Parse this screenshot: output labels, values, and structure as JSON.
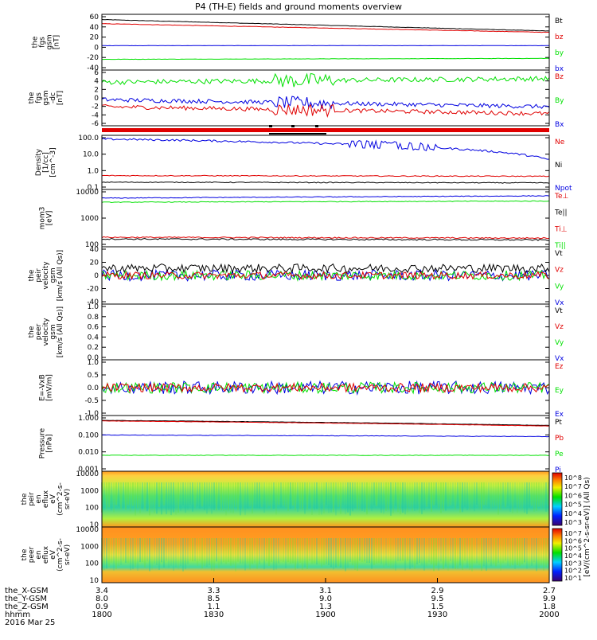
{
  "title": "P4 (TH-E) fields and ground moments overview",
  "date_label": "2016 Mar 25",
  "colors": {
    "black": "#000000",
    "red": "#e00000",
    "green": "#00e000",
    "blue": "#0000e0"
  },
  "chart_data": [
    {
      "type": "line",
      "ylabel": [
        "the",
        "fgs",
        "gsm",
        "[nT]"
      ],
      "yticks": [
        "60",
        "40",
        "20",
        "0",
        "-20",
        "-40"
      ],
      "ylim": [
        -50,
        65
      ],
      "legend": [
        {
          "name": "Bt",
          "color": "black"
        },
        {
          "name": "bz",
          "color": "red"
        },
        {
          "name": "by",
          "color": "green"
        },
        {
          "name": "bx",
          "color": "blue"
        }
      ],
      "series": [
        {
          "color": "black",
          "start": 57,
          "end": 32,
          "noise": 0.4
        },
        {
          "color": "red",
          "start": 48,
          "end": 29,
          "noise": 0.4
        },
        {
          "color": "blue",
          "start": 0,
          "end": 0,
          "noise": 0.3
        },
        {
          "color": "green",
          "start": -30,
          "end": -28,
          "noise": 0.3
        }
      ]
    },
    {
      "type": "line",
      "ylabel": [
        "the",
        "fgs",
        "gsm",
        "-dc",
        "[nT]"
      ],
      "yticks": [
        "6",
        "4",
        "2",
        "0",
        "-2",
        "-4",
        "-6"
      ],
      "ylim": [
        -8,
        7
      ],
      "legend": [
        {
          "name": "Bz",
          "color": "red"
        },
        {
          "name": "By",
          "color": "green"
        },
        {
          "name": "Bx",
          "color": "blue"
        }
      ],
      "series": [
        {
          "color": "green",
          "start": 4,
          "end": 5,
          "noise": 0.7
        },
        {
          "color": "blue",
          "start": -1,
          "end": -3,
          "noise": 0.6
        },
        {
          "color": "red",
          "start": -3,
          "end": -5,
          "noise": 0.6
        }
      ]
    },
    {
      "type": "line",
      "ylabel": [
        "Density",
        "[1/cc]",
        "[cm^-3]"
      ],
      "yticks": [
        "100.0",
        "10.0",
        "1.0",
        "0.1"
      ],
      "log": true,
      "ylim": [
        0.1,
        120
      ],
      "legend": [
        {
          "name": "Ne",
          "color": "red"
        },
        {
          "name": "Ni",
          "color": "black"
        },
        {
          "name": "Npot",
          "color": "blue"
        }
      ],
      "series": [
        {
          "color": "blue",
          "start": 90,
          "end": 5,
          "noise": 0.12
        },
        {
          "color": "red",
          "start": 0.55,
          "end": 0.5,
          "noise": 0.05
        },
        {
          "color": "black",
          "start": 0.22,
          "end": 0.2,
          "noise": 0.05
        }
      ]
    },
    {
      "type": "line",
      "ylabel": [
        "mom3",
        "[eV]"
      ],
      "yticks": [
        "10000",
        "1000",
        "100"
      ],
      "log": true,
      "ylim": [
        60,
        12000
      ],
      "legend": [
        {
          "name": "Te⊥",
          "color": "red"
        },
        {
          "name": "Te||",
          "color": "black"
        },
        {
          "name": "Ti⊥",
          "color": "red"
        },
        {
          "name": "Ti||",
          "color": "green"
        }
      ],
      "series": [
        {
          "color": "blue",
          "start": 6000,
          "end": 7500,
          "noise": 0.03
        },
        {
          "color": "green",
          "start": 4000,
          "end": 4500,
          "noise": 0.03
        },
        {
          "color": "red",
          "start": 130,
          "end": 120,
          "noise": 0.05
        },
        {
          "color": "black",
          "start": 110,
          "end": 100,
          "noise": 0.06
        }
      ]
    },
    {
      "type": "line",
      "ylabel": [
        "the",
        "peir",
        "velocity",
        "gsm",
        "[km/s (All Qs)]"
      ],
      "yticks": [
        "40",
        "20",
        "0",
        "-20",
        "-40"
      ],
      "ylim": [
        -45,
        45
      ],
      "legend": [
        {
          "name": "Vt",
          "color": "black"
        },
        {
          "name": "Vz",
          "color": "red"
        },
        {
          "name": "Vy",
          "color": "green"
        },
        {
          "name": "Vx",
          "color": "blue"
        }
      ],
      "series": [
        {
          "color": "blue",
          "start": 0,
          "end": 0,
          "noise": 9
        },
        {
          "color": "green",
          "start": 0,
          "end": 0,
          "noise": 8
        },
        {
          "color": "red",
          "start": 0,
          "end": 0,
          "noise": 6
        },
        {
          "color": "black",
          "start": 12,
          "end": 12,
          "noise": 7
        }
      ]
    },
    {
      "type": "line",
      "ylabel": [
        "the",
        "peer",
        "velocity",
        "gsm",
        "[km/s (All Qs)]"
      ],
      "yticks": [
        "1.0",
        "0.8",
        "0.6",
        "0.4",
        "0.2",
        "0.0"
      ],
      "ylim": [
        0,
        1
      ],
      "legend": [
        {
          "name": "Vt",
          "color": "black"
        },
        {
          "name": "Vz",
          "color": "red"
        },
        {
          "name": "Vy",
          "color": "green"
        },
        {
          "name": "Vx",
          "color": "blue"
        }
      ],
      "series": []
    },
    {
      "type": "line",
      "ylabel": [
        "E=-VxB",
        "[mV/m]"
      ],
      "yticks": [
        "1.0",
        "0.5",
        "0.0",
        "-0.5",
        "-1.0"
      ],
      "ylim": [
        -1.2,
        1.2
      ],
      "legend": [
        {
          "name": "Ez",
          "color": "red"
        },
        {
          "name": "Ey",
          "color": "green"
        },
        {
          "name": "Ex",
          "color": "blue"
        }
      ],
      "series": [
        {
          "color": "blue",
          "start": 0,
          "end": 0,
          "noise": 0.3
        },
        {
          "color": "green",
          "start": 0,
          "end": 0,
          "noise": 0.25
        },
        {
          "color": "red",
          "start": 0,
          "end": 0,
          "noise": 0.2
        }
      ]
    },
    {
      "type": "line",
      "ylabel": [
        "Pressure",
        "[nPa]"
      ],
      "yticks": [
        "1.000",
        "0.100",
        "0.010",
        "0.001"
      ],
      "log": true,
      "ylim": [
        0.001,
        2
      ],
      "legend": [
        {
          "name": "Pt",
          "color": "black"
        },
        {
          "name": "Pb",
          "color": "red"
        },
        {
          "name": "Pe",
          "color": "green"
        },
        {
          "name": "Pi",
          "color": "blue"
        }
      ],
      "series": [
        {
          "color": "black",
          "start": 1.25,
          "end": 0.6,
          "noise": 0.02
        },
        {
          "color": "red",
          "start": 1.15,
          "end": 0.55,
          "noise": 0.02
        },
        {
          "color": "blue",
          "start": 0.15,
          "end": 0.12,
          "noise": 0.03
        },
        {
          "color": "green",
          "start": 0.008,
          "end": 0.008,
          "noise": 0.03
        }
      ]
    },
    {
      "type": "heatmap",
      "ylabel": [
        "the",
        "peir",
        "en",
        "eflux",
        "eV",
        "(cm^2-s-",
        "sr-eV)"
      ],
      "yticks": [
        "10000",
        "1000",
        "100",
        "10"
      ],
      "colorbar_ticks": [
        "10^8",
        "10^7",
        "10^6",
        "10^5",
        "10^4",
        "10^3"
      ],
      "colorbar_label": "[eV/(cm^2-s-sr-eV)] (All Qs)"
    },
    {
      "type": "heatmap",
      "ylabel": [
        "the",
        "peer",
        "en",
        "eflux",
        "eV",
        "(cm^2-s-",
        "sr-eV)"
      ],
      "yticks": [
        "10000",
        "1000",
        "100",
        "10"
      ],
      "colorbar_ticks": [
        "10^7",
        "10^6",
        "10^5",
        "10^4",
        "10^3",
        "10^2",
        "10^1"
      ]
    }
  ],
  "xaxis": {
    "rows": [
      {
        "label": "the_X-GSM",
        "values": [
          "3.4",
          "3.3",
          "3.1",
          "2.9",
          "2.7"
        ]
      },
      {
        "label": "the_Y-GSM",
        "values": [
          "8.0",
          "8.5",
          "9.0",
          "9.5",
          "9.9"
        ]
      },
      {
        "label": "the_Z-GSM",
        "values": [
          "0.9",
          "1.1",
          "1.3",
          "1.5",
          "1.8"
        ]
      },
      {
        "label": "hhmm",
        "values": [
          "1800",
          "1830",
          "1900",
          "1930",
          "2000"
        ]
      }
    ]
  }
}
